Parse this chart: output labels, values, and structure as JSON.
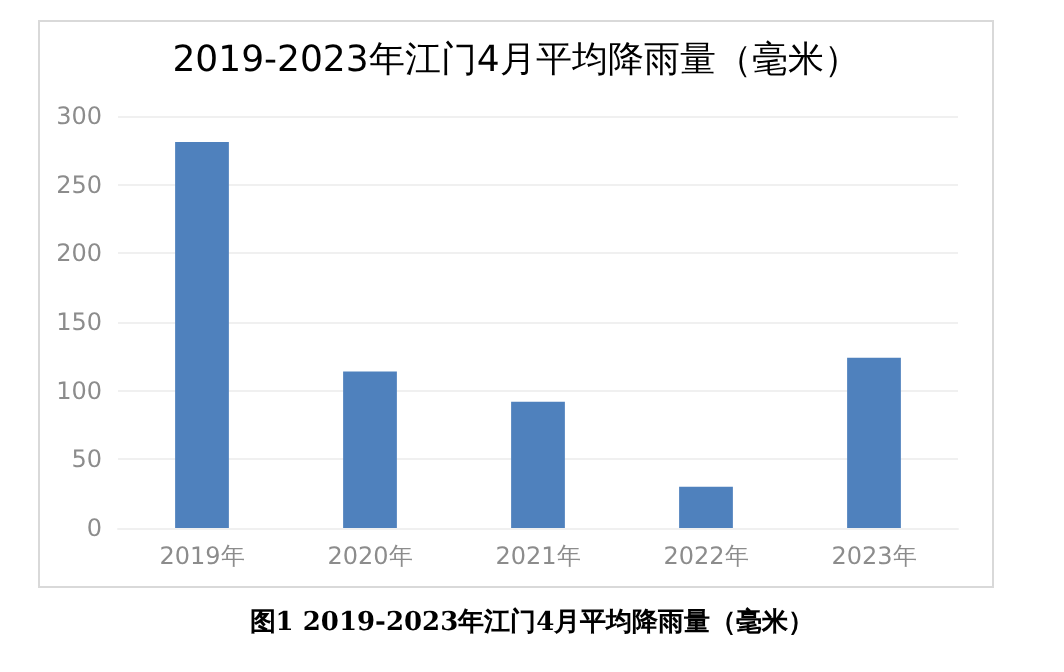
{
  "chart_data": {
    "type": "bar",
    "title": "2019-2023年江门4月平均降雨量（毫米）",
    "categories": [
      "2019年",
      "2020年",
      "2021年",
      "2022年",
      "2023年"
    ],
    "values": [
      281,
      114,
      92,
      30,
      124
    ],
    "color": "#4f81bd",
    "ylim": [
      0,
      300
    ],
    "yticks": [
      0,
      50,
      100,
      150,
      200,
      250,
      300
    ],
    "grid": "y",
    "annotations": [
      "图1 2019-2023年江门4月平均降雨量（毫米）"
    ]
  }
}
